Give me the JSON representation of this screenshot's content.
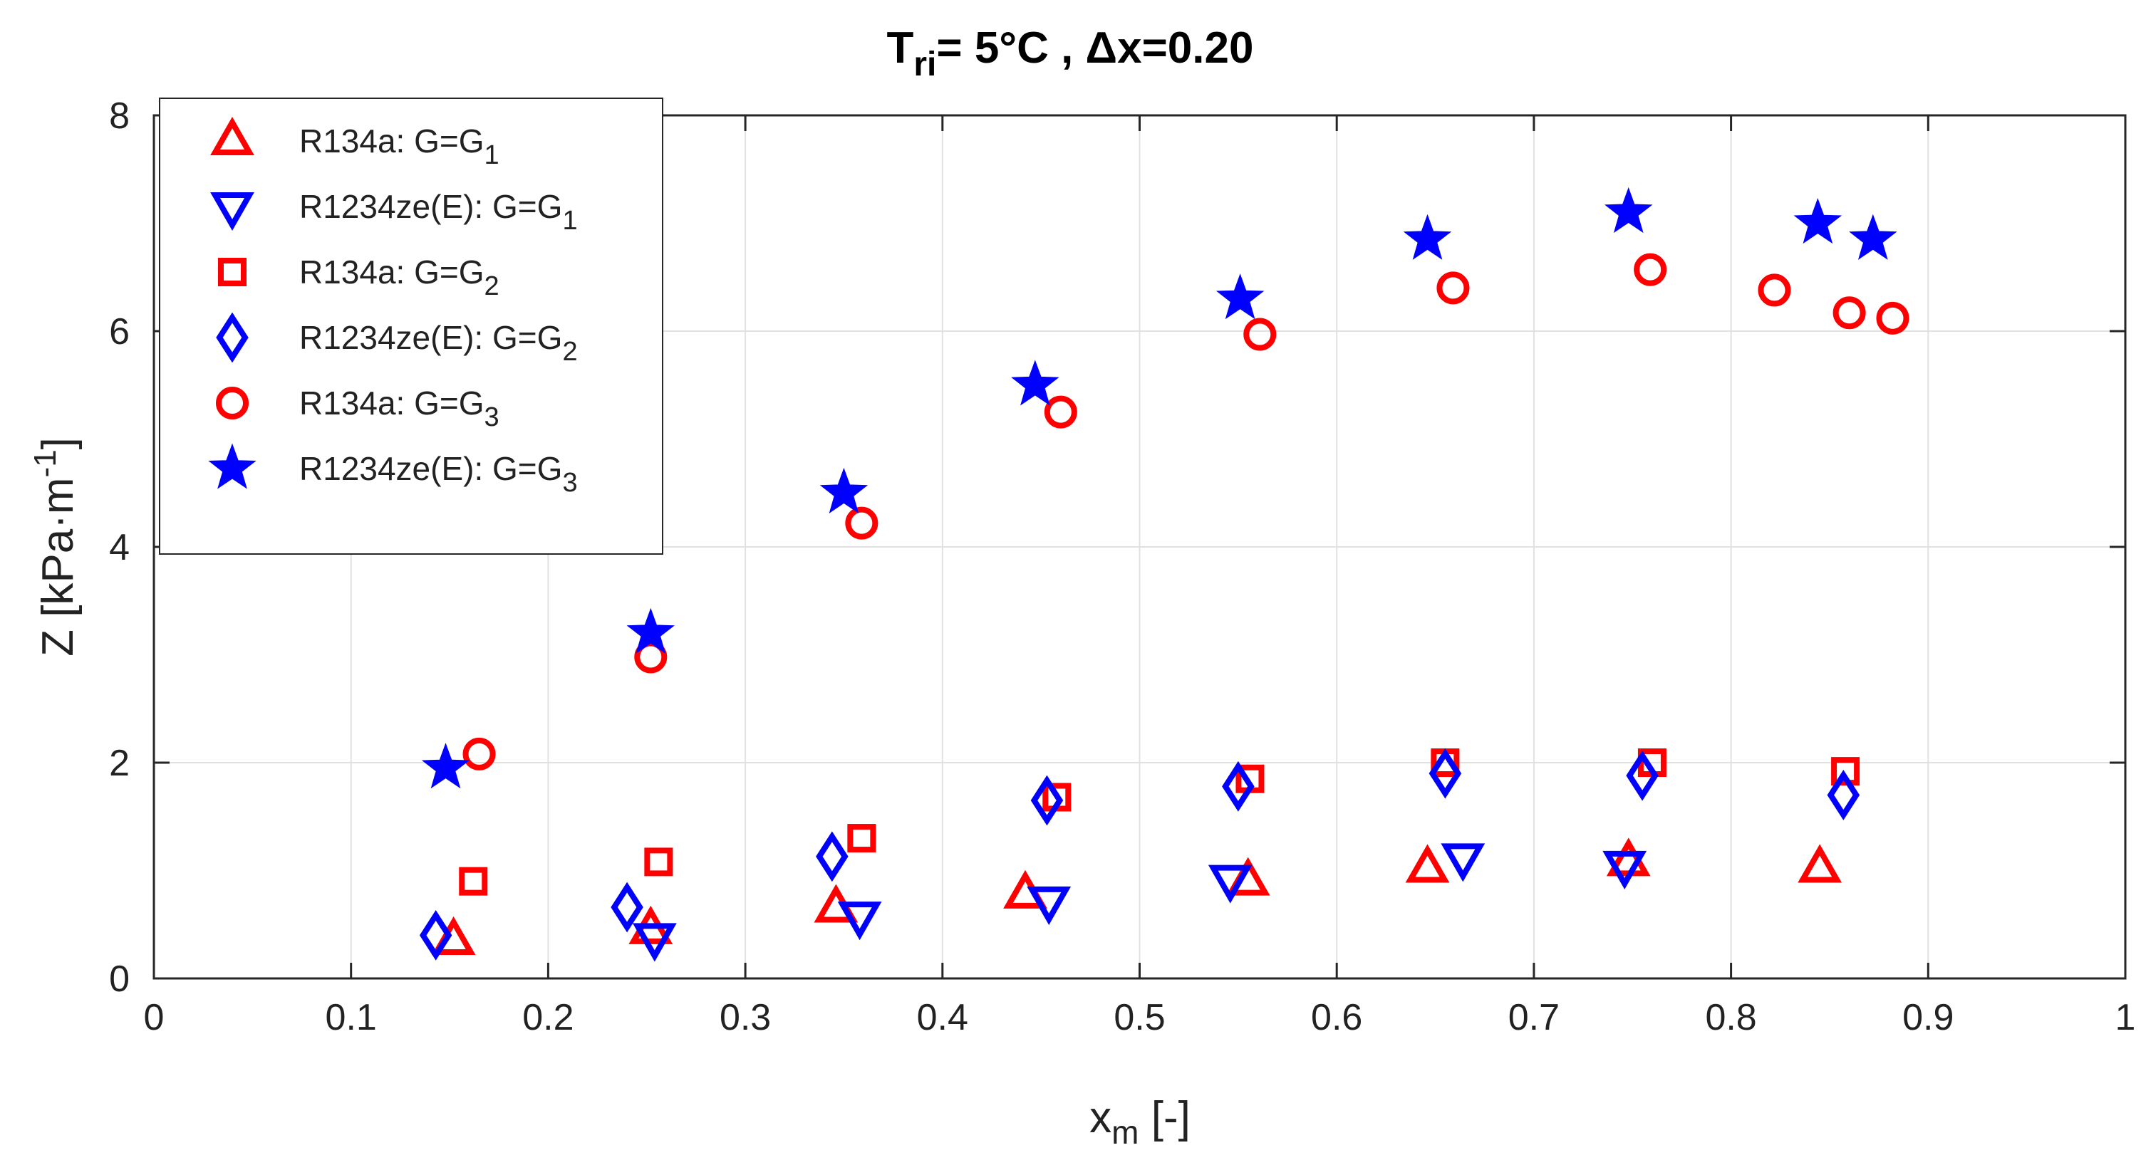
{
  "chart_data": {
    "type": "scatter",
    "title": {
      "prefix": "T",
      "sub": "ri",
      "rest": "= 5°C ,  Δx=0.20"
    },
    "xlabel": {
      "main": "x",
      "sub": "m",
      "rest": " [-]"
    },
    "ylabel": {
      "main": "Z [kPa·m",
      "sup": "-1",
      "rest": "]"
    },
    "xlim": [
      0,
      1
    ],
    "ylim": [
      0,
      8
    ],
    "xticks": [
      "0",
      "0.1",
      "0.2",
      "0.3",
      "0.4",
      "0.5",
      "0.6",
      "0.7",
      "0.8",
      "0.9",
      "1"
    ],
    "yticks": [
      "0",
      "2",
      "4",
      "6",
      "8"
    ],
    "grid": true,
    "legend_position": "top-left",
    "colors": {
      "red": "#ff0000",
      "blue": "#0000ff"
    },
    "series": [
      {
        "name": "R134a: G=G1",
        "label_main": "R134a: G=G",
        "label_sub": "1",
        "marker": "triangle-up",
        "color": "#ff0000",
        "x": [
          0.152,
          0.252,
          0.346,
          0.442,
          0.555,
          0.646,
          0.748,
          0.845
        ],
        "y": [
          0.35,
          0.45,
          0.65,
          0.78,
          0.9,
          1.02,
          1.08,
          1.02
        ]
      },
      {
        "name": "R1234ze(E): G=G1",
        "label_main": "R1234ze(E): G=G",
        "label_sub": "1",
        "marker": "triangle-down",
        "color": "#0000ff",
        "x": [
          0.254,
          0.358,
          0.454,
          0.546,
          0.664,
          0.746
        ],
        "y": [
          0.38,
          0.58,
          0.72,
          0.92,
          1.12,
          1.05
        ]
      },
      {
        "name": "R134a: G=G2",
        "label_main": "R134a: G=G",
        "label_sub": "2",
        "marker": "square",
        "color": "#ff0000",
        "x": [
          0.162,
          0.256,
          0.359,
          0.458,
          0.556,
          0.655,
          0.76,
          0.858
        ],
        "y": [
          0.9,
          1.08,
          1.3,
          1.68,
          1.85,
          2.0,
          2.0,
          1.92
        ]
      },
      {
        "name": "R1234ze(E): G=G2",
        "label_main": "R1234ze(E): G=G",
        "label_sub": "2",
        "marker": "diamond",
        "color": "#0000ff",
        "x": [
          0.143,
          0.24,
          0.344,
          0.453,
          0.55,
          0.655,
          0.755,
          0.857
        ],
        "y": [
          0.4,
          0.66,
          1.13,
          1.65,
          1.78,
          1.9,
          1.88,
          1.7
        ]
      },
      {
        "name": "R134a: G=G3",
        "label_main": "R134a: G=G",
        "label_sub": "3",
        "marker": "circle",
        "color": "#ff0000",
        "x": [
          0.165,
          0.252,
          0.359,
          0.46,
          0.561,
          0.659,
          0.759,
          0.822,
          0.86,
          0.882
        ],
        "y": [
          2.08,
          2.98,
          4.22,
          5.25,
          5.97,
          6.4,
          6.57,
          6.38,
          6.17,
          6.12
        ]
      },
      {
        "name": "R1234ze(E): G=G3",
        "label_main": "R1234ze(E): G=G",
        "label_sub": "3",
        "marker": "star",
        "color": "#0000ff",
        "x": [
          0.148,
          0.252,
          0.35,
          0.447,
          0.551,
          0.646,
          0.748,
          0.844,
          0.872
        ],
        "y": [
          1.95,
          3.2,
          4.5,
          5.5,
          6.3,
          6.85,
          7.1,
          7.0,
          6.85
        ]
      }
    ]
  }
}
